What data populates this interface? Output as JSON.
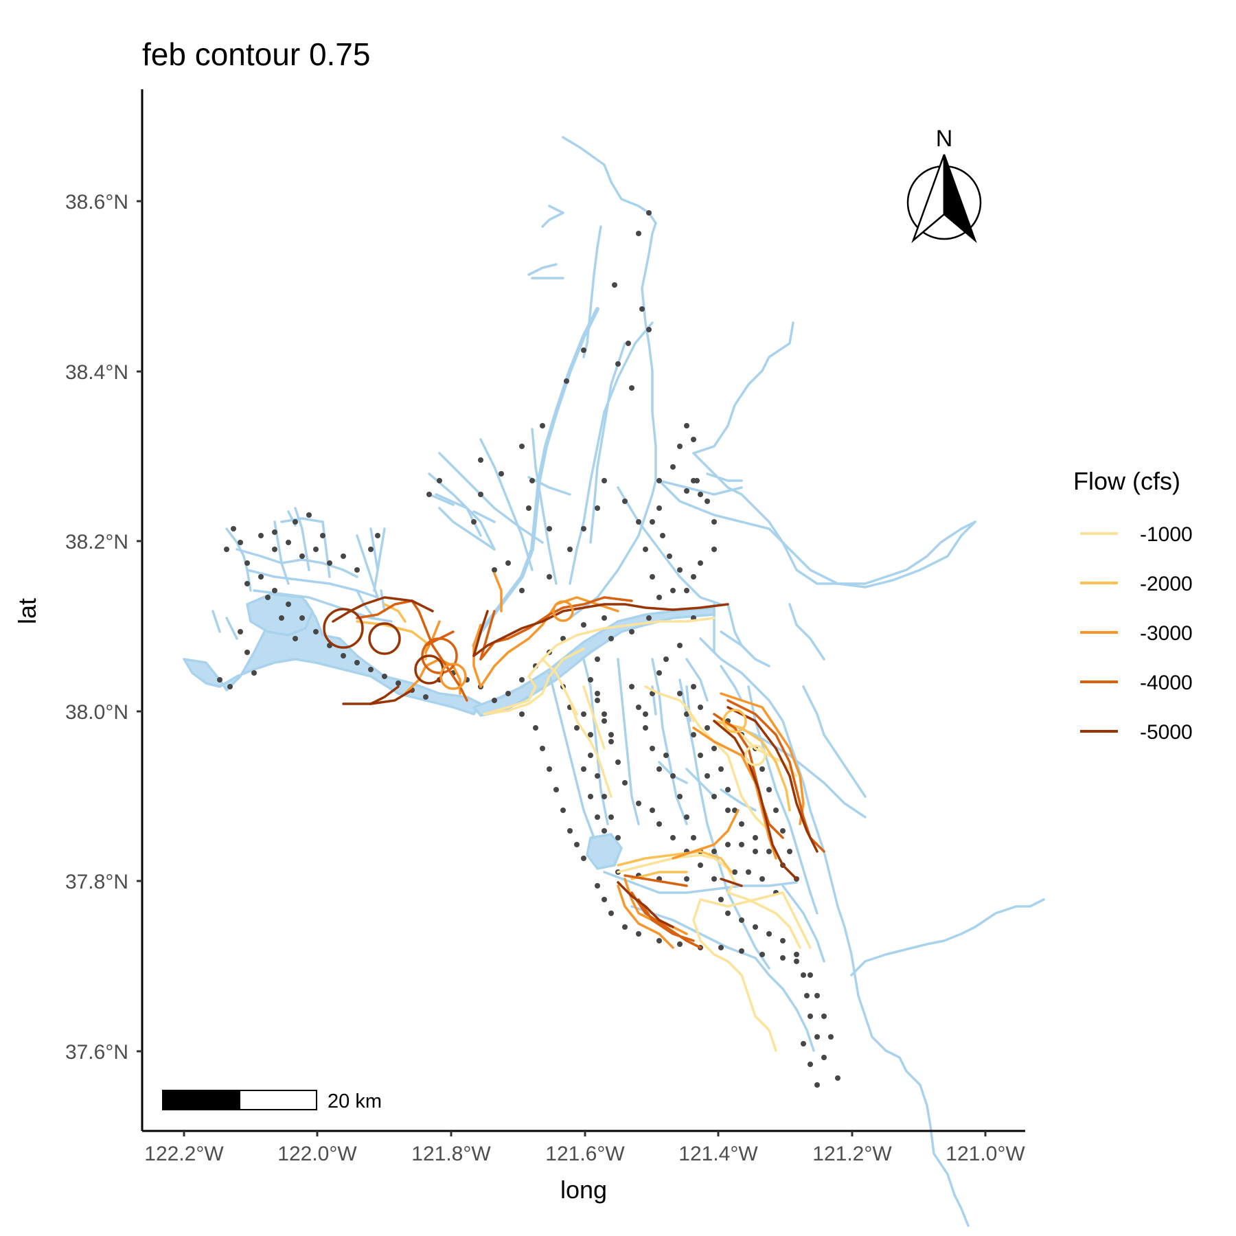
{
  "title": "feb contour 0.75",
  "x_axis": {
    "title": "long",
    "ticks": [
      "122.2°W",
      "122.0°W",
      "121.8°W",
      "121.6°W",
      "121.4°W",
      "121.2°W",
      "121.0°W"
    ]
  },
  "y_axis": {
    "title": "lat",
    "ticks": [
      "38.6°N",
      "38.4°N",
      "38.2°N",
      "38.0°N",
      "37.8°N",
      "37.6°N"
    ]
  },
  "legend": {
    "title": "Flow (cfs)",
    "items": [
      {
        "label": "-1000",
        "color": "#fde39a"
      },
      {
        "label": "-2000",
        "color": "#fbc155"
      },
      {
        "label": "-3000",
        "color": "#f7962b"
      },
      {
        "label": "-4000",
        "color": "#d9600f"
      },
      {
        "label": "-5000",
        "color": "#993404"
      }
    ]
  },
  "scale_bar": {
    "label": "20 km"
  },
  "north_arrow": {
    "label": "N"
  },
  "colors": {
    "water": "#a9d3ec",
    "water_fill": "#bcdcf2",
    "nodes": "#474747",
    "axis": "#000000"
  },
  "map_extent": {
    "lon_range": [
      -122.25,
      -120.94
    ],
    "lat_range": [
      37.52,
      38.73
    ]
  }
}
